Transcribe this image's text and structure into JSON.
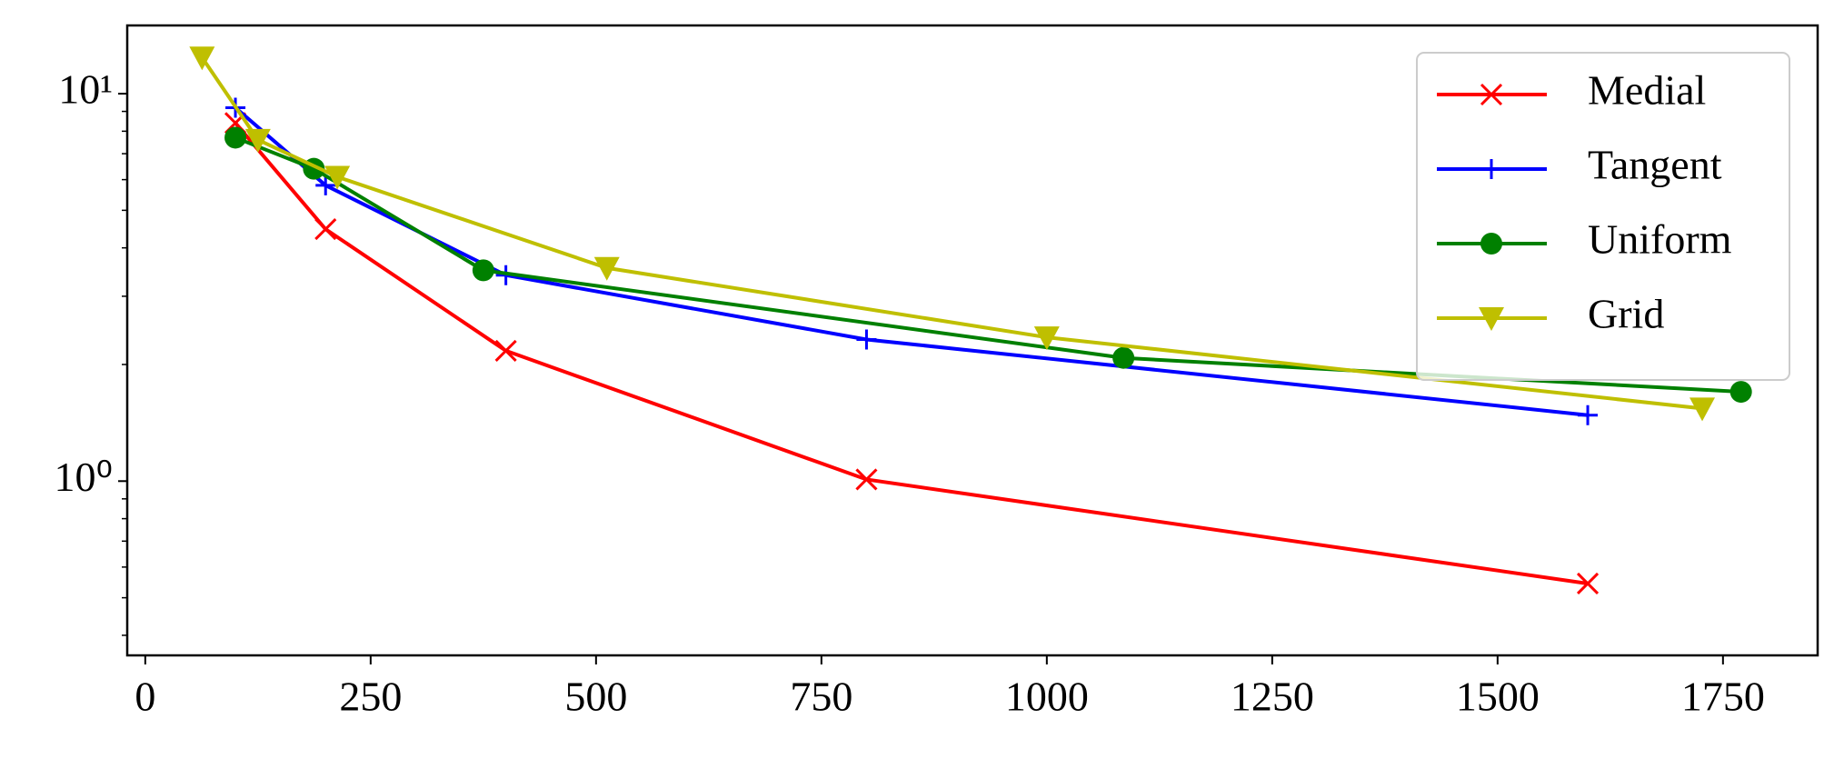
{
  "chart_data": {
    "type": "line",
    "xlim": [
      -20,
      1855
    ],
    "xticks": [
      0,
      250,
      500,
      750,
      1000,
      1250,
      1500,
      1750
    ],
    "ylim": [
      0.355,
      15
    ],
    "ylog": true,
    "yticks": [
      {
        "value": 1,
        "label": "10⁰"
      },
      {
        "value": 10,
        "label": "10¹"
      }
    ],
    "yminorticks": [
      0.4,
      0.5,
      0.6,
      0.7,
      0.8,
      0.9,
      2,
      3,
      4,
      5,
      6,
      7,
      8,
      9
    ],
    "legend": "upper right",
    "series": [
      {
        "name": "Medial",
        "color": "#ff0000",
        "marker": "x",
        "x": [
          100,
          200,
          400,
          800,
          1600
        ],
        "values": [
          8.4,
          4.47,
          2.17,
          1.01,
          0.544
        ]
      },
      {
        "name": "Tangent",
        "color": "#0000ff",
        "marker": "+",
        "x": [
          100,
          200,
          400,
          800,
          1600
        ],
        "values": [
          9.2,
          5.8,
          3.4,
          2.32,
          1.48
        ]
      },
      {
        "name": "Uniform",
        "color": "#008000",
        "marker": "o",
        "x": [
          100,
          187,
          375,
          1085,
          1770
        ],
        "values": [
          7.7,
          6.4,
          3.5,
          2.08,
          1.7
        ]
      },
      {
        "name": "Grid",
        "color": "#bfbf00",
        "marker": "v",
        "x": [
          63,
          125,
          213,
          512,
          1000,
          1727
        ],
        "values": [
          12.4,
          7.6,
          6.1,
          3.55,
          2.35,
          1.54
        ]
      }
    ]
  }
}
